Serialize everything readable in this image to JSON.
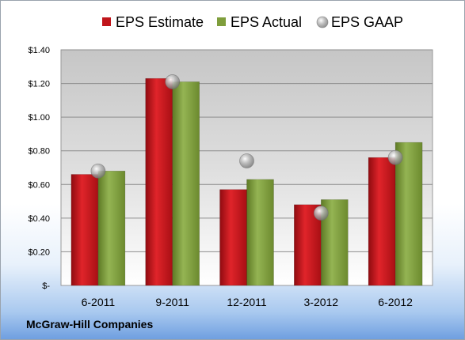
{
  "company": "McGraw-Hill Companies",
  "colors": {
    "estimate": "#c0151b",
    "actual": "#7f9e3c",
    "gaap": "#9a9a9a"
  },
  "chart_data": {
    "type": "bar",
    "categories": [
      "6-2011",
      "9-2011",
      "12-2011",
      "3-2012",
      "6-2012"
    ],
    "series": [
      {
        "name": "EPS Estimate",
        "kind": "bar",
        "values": [
          0.66,
          1.23,
          0.57,
          0.48,
          0.76
        ]
      },
      {
        "name": "EPS Actual",
        "kind": "bar",
        "values": [
          0.68,
          1.21,
          0.63,
          0.51,
          0.85
        ]
      },
      {
        "name": "EPS GAAP",
        "kind": "marker",
        "values": [
          0.68,
          1.21,
          0.74,
          0.43,
          0.76
        ]
      }
    ],
    "ylim": [
      0,
      1.4
    ],
    "yticks": [
      0,
      0.2,
      0.4,
      0.6,
      0.8,
      1.0,
      1.2,
      1.4
    ],
    "ytick_labels": [
      "$-",
      "$0.20",
      "$0.40",
      "$0.60",
      "$0.80",
      "$1.00",
      "$1.20",
      "$1.40"
    ],
    "legend_position": "top",
    "grid": true
  }
}
